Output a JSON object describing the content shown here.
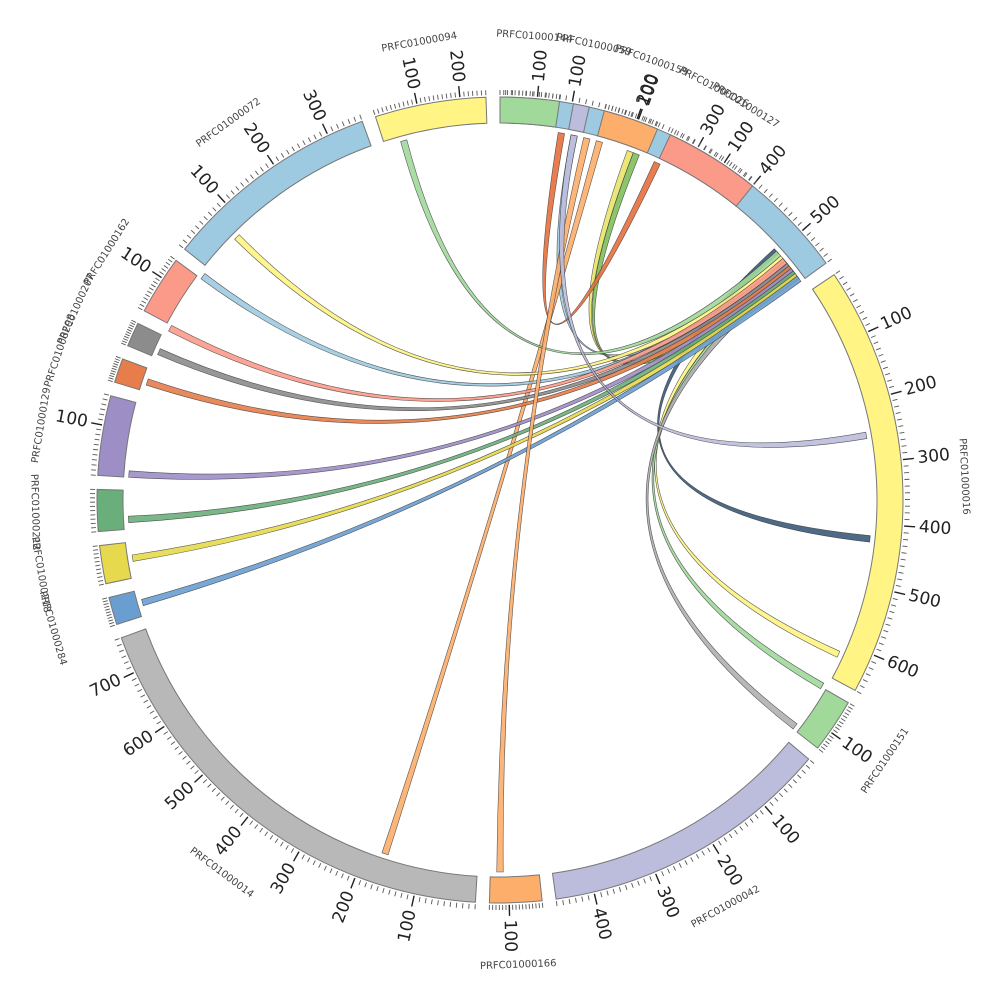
{
  "diagram": {
    "type": "circos",
    "segments": [
      {
        "id": "PRFC01000026",
        "label": "PRFC01000026",
        "start": 270.8,
        "end": 324.0,
        "color": "#9ecae1",
        "ticks": [
          "100",
          "200",
          "300",
          "400",
          "500"
        ]
      },
      {
        "id": "PRFC01000016",
        "label": "PRFC01000016",
        "start": 326.0,
        "end": 388.2,
        "color": "#fff484",
        "ticks": [
          "100",
          "200",
          "300",
          "400",
          "500",
          "600"
        ]
      },
      {
        "id": "PRFC01000151",
        "label": "PRFC01000151",
        "start": 390.2,
        "end": 398.0,
        "color": "#a1d99b",
        "ticks": [
          "100"
        ]
      },
      {
        "id": "PRFC01000042",
        "label": "PRFC01000042",
        "start": 400.0,
        "end": 442.0,
        "color": "#bcbddc",
        "ticks": [
          "100",
          "200",
          "300",
          "400"
        ]
      },
      {
        "id": "PRFC01000166",
        "label": "PRFC01000166",
        "start": 444.0,
        "end": 451.5,
        "color": "#fdae6b",
        "ticks": [
          "100"
        ]
      },
      {
        "id": "PRFC01000014",
        "label": "PRFC01000014",
        "start": 453.5,
        "end": 520.0,
        "color": "#b8b8b8",
        "ticks": [
          "100",
          "200",
          "300",
          "400",
          "500",
          "600",
          "700"
        ]
      },
      {
        "id": "PRFC01000284",
        "label": "PRFC01000284",
        "start": 522.0,
        "end": 526.0,
        "color": "#6a9ed1",
        "ticks": []
      },
      {
        "id": "PRFC01000218",
        "label": "PRFC01000218",
        "start": 528.0,
        "end": 533.5,
        "color": "#e7d94d",
        "ticks": []
      },
      {
        "id": "PRFC01000212",
        "label": "PRFC01000212",
        "start": 535.5,
        "end": 541.5,
        "color": "#6aae7b",
        "ticks": []
      },
      {
        "id": "PRFC01000129",
        "label": "PRFC01000129",
        "start": 543.5,
        "end": 555.0,
        "color": "#9e8ec6",
        "ticks": [
          "100"
        ]
      },
      {
        "id": "PRFC01000298",
        "label": "PRFC01000298",
        "start": 557.0,
        "end": 560.5,
        "color": "#e67d4a",
        "ticks": []
      },
      {
        "id": "PRFC01000207",
        "label": "PRFC01000207",
        "start": 562.5,
        "end": 566.0,
        "color": "#8c8c8c",
        "ticks": []
      },
      {
        "id": "PRFC01000162",
        "label": "PRFC01000162",
        "start": 568.0,
        "end": 576.5,
        "color": "#fc9a89",
        "ticks": [
          "100"
        ]
      },
      {
        "id": "PRFC01000072",
        "label": "PRFC01000072",
        "start": 578.5,
        "end": 610.0,
        "color": "#9ecae1",
        "ticks": [
          "100",
          "200",
          "300"
        ]
      },
      {
        "id": "PRFC01000094",
        "label": "PRFC01000094",
        "start": 612.0,
        "end": 628.0,
        "color": "#fff484",
        "ticks": [
          "100",
          "200"
        ]
      },
      {
        "id": "PRFC01000144",
        "label": "PRFC01000144",
        "start": 630.0,
        "end": 638.5,
        "color": "#a1d99b",
        "ticks": [
          "100"
        ]
      },
      {
        "id": "PRFC01000059",
        "label": "PRFC01000059",
        "start": 640.5,
        "end": 642.8,
        "color": "#bcbddc",
        "ticks": []
      },
      {
        "id": "PRFC01000159",
        "label": "PRFC01000159",
        "start": 645.0,
        "end": 653.0,
        "color": "#fdae6b",
        "ticks": [
          "100"
        ]
      },
      {
        "id": "PRFC01000127",
        "label": "PRFC01000127",
        "start": 655.0,
        "end": 668.8,
        "color": "#fc9a89",
        "ticks": [
          "100"
        ]
      }
    ],
    "links": [
      {
        "from": 281.5,
        "to": 320.0,
        "color": "#9ecae1"
      },
      {
        "from": 290.5,
        "to": 322.0,
        "color": "#e8e36a"
      },
      {
        "from": 291.5,
        "to": 323.0,
        "color": "#7fbf5a"
      },
      {
        "from": 285.5,
        "to": 468.0,
        "color": "#fdae6b"
      },
      {
        "from": 279.5,
        "to": 655.0,
        "color": "#e66f3d"
      },
      {
        "from": 318.0,
        "to": 366.0,
        "color": "#3c5a7a"
      },
      {
        "from": 320.5,
        "to": 384.5,
        "color": "#fff484"
      },
      {
        "from": 321.5,
        "to": 390.0,
        "color": "#a1d99b"
      },
      {
        "from": 322.0,
        "to": 397.5,
        "color": "#b0b0b0"
      },
      {
        "from": 318.5,
        "to": 615.0,
        "color": "#a1d99b"
      },
      {
        "from": 319.5,
        "to": 585.0,
        "color": "#fff484"
      },
      {
        "from": 320.5,
        "to": 577.0,
        "color": "#9ecae1"
      },
      {
        "from": 320.0,
        "to": 567.5,
        "color": "#fc9a89"
      },
      {
        "from": 321.0,
        "to": 563.5,
        "color": "#8c8c8c"
      },
      {
        "from": 321.5,
        "to": 558.5,
        "color": "#e67d4a"
      },
      {
        "from": 322.0,
        "to": 544.0,
        "color": "#9e8ec6"
      },
      {
        "from": 322.5,
        "to": 537.0,
        "color": "#6aae7b"
      },
      {
        "from": 323.0,
        "to": 531.0,
        "color": "#e7d94d"
      },
      {
        "from": 323.5,
        "to": 524.0,
        "color": "#6a9ed1"
      },
      {
        "from": 643.5,
        "to": 450.0,
        "color": "#fdae6b"
      },
      {
        "from": 641.5,
        "to": 350.0,
        "color": "#bcbddc"
      }
    ]
  }
}
